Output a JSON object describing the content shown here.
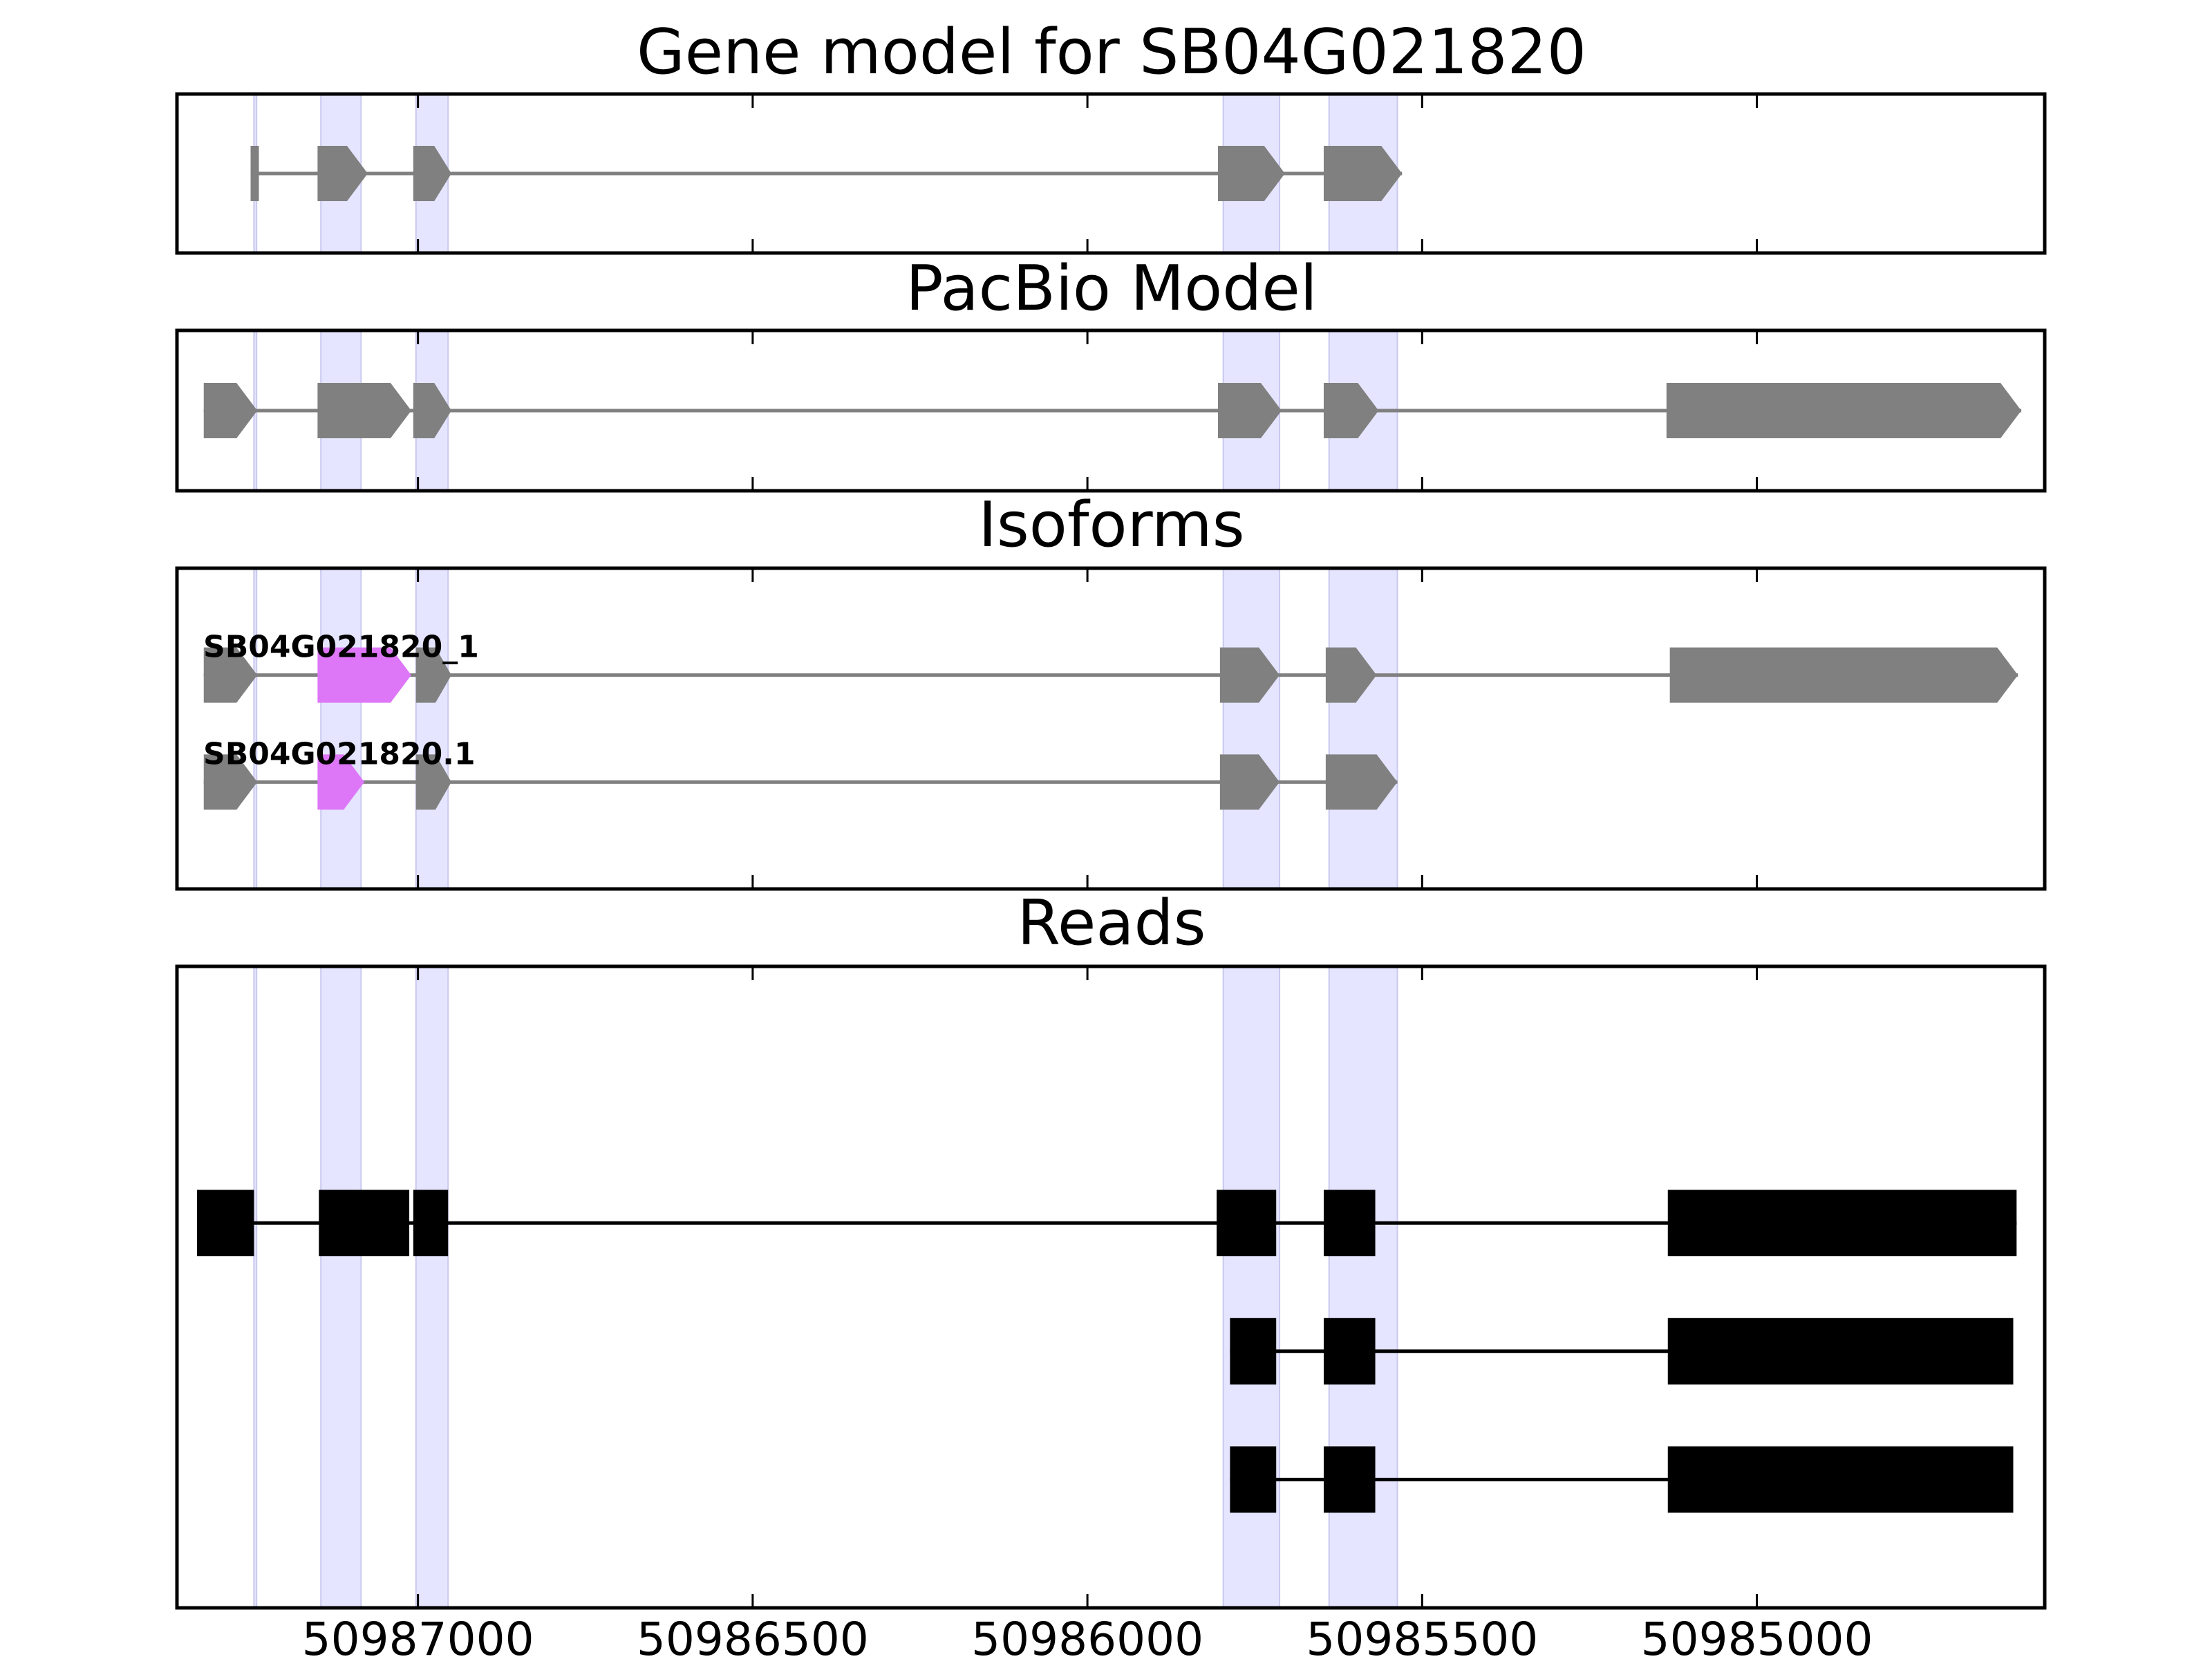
{
  "chart_data": {
    "type": "gene-track",
    "title": "Gene model for SB04G021820",
    "x_axis": {
      "direction": "descending",
      "xlim": [
        50987360,
        50984570
      ],
      "ticks": [
        50987000,
        50986500,
        50986000,
        50985500,
        50985000
      ],
      "tick_labels": [
        "50987000",
        "50986500",
        "50986000",
        "50985500",
        "50985000"
      ]
    },
    "highlight_regions": [
      [
        50987245,
        50987241
      ],
      [
        50987145,
        50987085
      ],
      [
        50987003,
        50986955
      ],
      [
        50985797,
        50985713
      ],
      [
        50985639,
        50985537
      ]
    ],
    "colors": {
      "feature": "#808080",
      "highlight": "#e5e5ff",
      "highlight_edge": "#c9c9ef",
      "isoform_variant": "#dd77f7",
      "read": "#000000",
      "frame": "#000000"
    },
    "panels": [
      {
        "title": "Gene model for SB04G021820",
        "track_count": 1,
        "tracks": [
          {
            "label": "",
            "exons": [
              {
                "start": 50987250,
                "end": 50987240
              },
              {
                "start": 50987150,
                "end": 50987075
              },
              {
                "start": 50987007,
                "end": 50986950
              },
              {
                "start": 50985805,
                "end": 50985705
              },
              {
                "start": 50985647,
                "end": 50985530
              }
            ]
          }
        ]
      },
      {
        "title": "PacBio Model",
        "track_count": 1,
        "tracks": [
          {
            "label": "",
            "exons": [
              {
                "start": 50987320,
                "end": 50987240
              },
              {
                "start": 50987150,
                "end": 50987010
              },
              {
                "start": 50987007,
                "end": 50986950
              },
              {
                "start": 50985805,
                "end": 50985710
              },
              {
                "start": 50985647,
                "end": 50985565
              },
              {
                "start": 50985135,
                "end": 50984605
              }
            ]
          }
        ]
      },
      {
        "title": "Isoforms",
        "track_count": 2,
        "tracks": [
          {
            "label": "SB04G021820_1",
            "exons": [
              {
                "start": 50987320,
                "end": 50987240
              },
              {
                "start": 50987150,
                "end": 50987010,
                "variant": true
              },
              {
                "start": 50987003,
                "end": 50986950
              },
              {
                "start": 50985802,
                "end": 50985713
              },
              {
                "start": 50985644,
                "end": 50985568
              },
              {
                "start": 50985130,
                "end": 50984610
              }
            ]
          },
          {
            "label": "SB04G021820.1",
            "exons": [
              {
                "start": 50987320,
                "end": 50987240
              },
              {
                "start": 50987150,
                "end": 50987080,
                "variant": true
              },
              {
                "start": 50987003,
                "end": 50986950
              },
              {
                "start": 50985802,
                "end": 50985713
              },
              {
                "start": 50985644,
                "end": 50985537
              }
            ]
          }
        ]
      },
      {
        "title": "Reads",
        "track_count": 4,
        "track_offset": 1,
        "tracks": [
          {
            "label": "",
            "exons": [
              {
                "start": 50987330,
                "end": 50987245
              },
              {
                "start": 50987148,
                "end": 50987013
              },
              {
                "start": 50987007,
                "end": 50986955
              },
              {
                "start": 50985807,
                "end": 50985718
              },
              {
                "start": 50985647,
                "end": 50985570
              },
              {
                "start": 50985133,
                "end": 50984612
              }
            ]
          },
          {
            "label": "",
            "exons": [
              {
                "start": 50985787,
                "end": 50985718
              },
              {
                "start": 50985647,
                "end": 50985570
              },
              {
                "start": 50985133,
                "end": 50984617
              }
            ]
          },
          {
            "label": "",
            "exons": [
              {
                "start": 50985787,
                "end": 50985718
              },
              {
                "start": 50985647,
                "end": 50985570
              },
              {
                "start": 50985133,
                "end": 50984617
              }
            ]
          }
        ]
      }
    ]
  }
}
